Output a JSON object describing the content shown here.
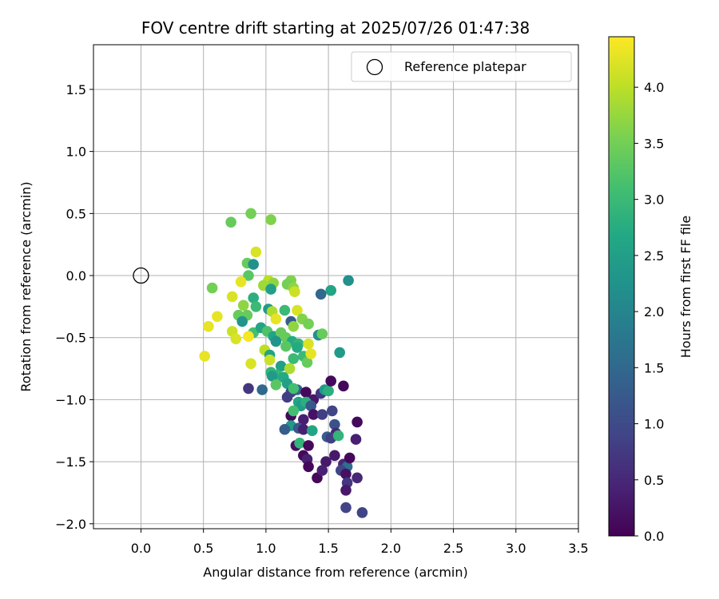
{
  "chart_data": {
    "type": "scatter",
    "title": "FOV centre drift starting at 2025/07/26 01:47:38",
    "xlabel": "Angular distance from reference (arcmin)",
    "ylabel": "Rotation from reference (arcmin)",
    "colorbar_label": "Hours from first FF file",
    "xlim": [
      -0.38,
      3.5
    ],
    "ylim": [
      -2.04,
      1.86
    ],
    "clim": [
      0.0,
      4.45
    ],
    "xticks": [
      "0.0",
      "0.5",
      "1.0",
      "1.5",
      "2.0",
      "2.5",
      "3.0",
      "3.5"
    ],
    "yticks": [
      "−2.0",
      "−1.5",
      "−1.0",
      "−0.5",
      "0.0",
      "0.5",
      "1.0",
      "1.5"
    ],
    "cticks": [
      "0.0",
      "0.5",
      "1.0",
      "1.5",
      "2.0",
      "2.5",
      "3.0",
      "3.5",
      "4.0"
    ],
    "colormap": "viridis",
    "grid": true,
    "legend": {
      "placement": "top-right",
      "label": "Reference platepar"
    },
    "reference_point": {
      "x": 0.0,
      "y": 0.0
    },
    "points": [
      [
        0.72,
        0.43,
        3.4
      ],
      [
        0.88,
        0.5,
        3.5
      ],
      [
        1.04,
        0.45,
        3.6
      ],
      [
        0.92,
        0.19,
        4.2
      ],
      [
        0.85,
        0.1,
        3.4
      ],
      [
        0.9,
        0.09,
        2.2
      ],
      [
        0.86,
        0.0,
        3.3
      ],
      [
        0.8,
        -0.05,
        4.3
      ],
      [
        0.57,
        -0.1,
        3.5
      ],
      [
        1.02,
        -0.04,
        4.0
      ],
      [
        1.06,
        -0.06,
        3.7
      ],
      [
        0.98,
        -0.08,
        3.8
      ],
      [
        1.04,
        -0.11,
        2.5
      ],
      [
        1.2,
        -0.04,
        3.6
      ],
      [
        1.17,
        -0.07,
        3.5
      ],
      [
        1.22,
        -0.1,
        3.7
      ],
      [
        1.23,
        -0.13,
        4.1
      ],
      [
        1.52,
        -0.12,
        2.6
      ],
      [
        1.66,
        -0.04,
        2.2
      ],
      [
        1.44,
        -0.15,
        1.5
      ],
      [
        0.9,
        -0.18,
        2.8
      ],
      [
        0.73,
        -0.17,
        4.2
      ],
      [
        0.82,
        -0.24,
        3.7
      ],
      [
        0.92,
        -0.25,
        3.0
      ],
      [
        1.02,
        -0.27,
        2.4
      ],
      [
        1.05,
        -0.29,
        3.9
      ],
      [
        1.15,
        -0.28,
        3.0
      ],
      [
        1.25,
        -0.28,
        4.2
      ],
      [
        0.78,
        -0.32,
        3.4
      ],
      [
        0.85,
        -0.32,
        3.4
      ],
      [
        0.61,
        -0.33,
        4.3
      ],
      [
        0.81,
        -0.37,
        2.3
      ],
      [
        1.08,
        -0.35,
        4.3
      ],
      [
        1.2,
        -0.37,
        1.3
      ],
      [
        1.29,
        -0.35,
        3.6
      ],
      [
        1.34,
        -0.39,
        3.5
      ],
      [
        1.22,
        -0.41,
        3.7
      ],
      [
        0.54,
        -0.41,
        4.3
      ],
      [
        0.73,
        -0.45,
        4.1
      ],
      [
        0.9,
        -0.46,
        3.1
      ],
      [
        0.96,
        -0.42,
        2.6
      ],
      [
        1.01,
        -0.45,
        3.2
      ],
      [
        1.06,
        -0.49,
        2.6
      ],
      [
        1.12,
        -0.46,
        3.4
      ],
      [
        1.16,
        -0.5,
        3.4
      ],
      [
        1.21,
        -0.53,
        2.7
      ],
      [
        1.26,
        -0.55,
        2.9
      ],
      [
        1.42,
        -0.48,
        2.2
      ],
      [
        1.45,
        -0.47,
        3.4
      ],
      [
        0.76,
        -0.51,
        4.2
      ],
      [
        0.86,
        -0.49,
        4.4
      ],
      [
        1.08,
        -0.53,
        2.3
      ],
      [
        1.16,
        -0.57,
        3.3
      ],
      [
        1.25,
        -0.58,
        2.7
      ],
      [
        1.34,
        -0.55,
        4.2
      ],
      [
        1.59,
        -0.62,
        2.4
      ],
      [
        0.99,
        -0.6,
        4.0
      ],
      [
        1.03,
        -0.64,
        2.6
      ],
      [
        1.3,
        -0.65,
        3.0
      ],
      [
        1.33,
        -0.7,
        3.4
      ],
      [
        1.36,
        -0.63,
        4.3
      ],
      [
        1.22,
        -0.67,
        3.0
      ],
      [
        0.51,
        -0.65,
        4.3
      ],
      [
        0.88,
        -0.71,
        4.2
      ],
      [
        1.03,
        -0.68,
        4.1
      ],
      [
        1.12,
        -0.73,
        2.5
      ],
      [
        1.19,
        -0.75,
        3.9
      ],
      [
        1.04,
        -0.78,
        2.9
      ],
      [
        1.09,
        -0.8,
        2.9
      ],
      [
        1.14,
        -0.82,
        2.7
      ],
      [
        1.05,
        -0.81,
        2.4
      ],
      [
        1.08,
        -0.88,
        3.3
      ],
      [
        1.17,
        -0.87,
        2.5
      ],
      [
        1.25,
        -0.92,
        1.4
      ],
      [
        1.2,
        -0.94,
        0.9
      ],
      [
        1.22,
        -0.91,
        3.1
      ],
      [
        1.32,
        -0.94,
        0.1
      ],
      [
        1.38,
        -1.0,
        0.3
      ],
      [
        1.44,
        -0.95,
        0.7
      ],
      [
        1.47,
        -0.92,
        2.4
      ],
      [
        1.5,
        -0.93,
        2.8
      ],
      [
        1.52,
        -0.85,
        0.1
      ],
      [
        1.62,
        -0.89,
        0.1
      ],
      [
        0.86,
        -0.91,
        0.7
      ],
      [
        0.97,
        -0.92,
        1.5
      ],
      [
        1.17,
        -0.98,
        0.8
      ],
      [
        1.26,
        -1.02,
        2.6
      ],
      [
        1.28,
        -1.05,
        2.4
      ],
      [
        1.32,
        -1.02,
        2.8
      ],
      [
        1.36,
        -1.05,
        1.2
      ],
      [
        1.38,
        -1.12,
        0.2
      ],
      [
        1.45,
        -1.12,
        0.8
      ],
      [
        1.53,
        -1.09,
        0.9
      ],
      [
        1.2,
        -1.13,
        0.1
      ],
      [
        1.22,
        -1.09,
        3.1
      ],
      [
        1.3,
        -1.16,
        0.4
      ],
      [
        1.2,
        -1.21,
        2.4
      ],
      [
        1.26,
        -1.23,
        1.2
      ],
      [
        1.3,
        -1.24,
        0.4
      ],
      [
        1.37,
        -1.25,
        2.6
      ],
      [
        1.15,
        -1.24,
        1.3
      ],
      [
        1.55,
        -1.2,
        1.1
      ],
      [
        1.56,
        -1.27,
        0.5
      ],
      [
        1.49,
        -1.3,
        1.3
      ],
      [
        1.52,
        -1.31,
        0.8
      ],
      [
        1.58,
        -1.29,
        2.9
      ],
      [
        1.73,
        -1.18,
        0.1
      ],
      [
        1.72,
        -1.32,
        0.4
      ],
      [
        1.24,
        -1.37,
        0.2
      ],
      [
        1.27,
        -1.35,
        2.9
      ],
      [
        1.34,
        -1.37,
        0.1
      ],
      [
        1.3,
        -1.45,
        0.1
      ],
      [
        1.33,
        -1.48,
        0.4
      ],
      [
        1.48,
        -1.5,
        0.3
      ],
      [
        1.55,
        -1.45,
        0.3
      ],
      [
        1.62,
        -1.52,
        0.5
      ],
      [
        1.65,
        -1.54,
        1.6
      ],
      [
        1.67,
        -1.47,
        0.1
      ],
      [
        1.34,
        -1.54,
        0.1
      ],
      [
        1.41,
        -1.63,
        0.1
      ],
      [
        1.45,
        -1.57,
        0.4
      ],
      [
        1.6,
        -1.57,
        0.9
      ],
      [
        1.64,
        -1.6,
        0.2
      ],
      [
        1.73,
        -1.63,
        0.5
      ],
      [
        1.65,
        -1.67,
        0.7
      ],
      [
        1.64,
        -1.73,
        0.3
      ],
      [
        1.64,
        -1.87,
        0.9
      ],
      [
        1.77,
        -1.91,
        0.9
      ]
    ]
  }
}
